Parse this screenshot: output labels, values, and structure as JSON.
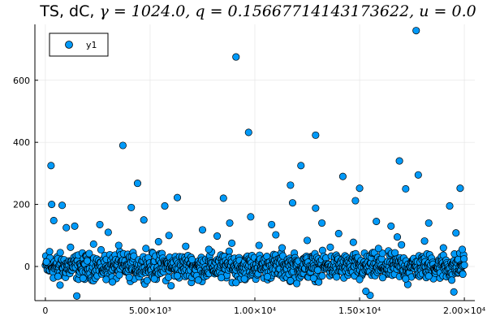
{
  "chart_data": {
    "type": "scatter",
    "title": "TS, dC, γ = 1024.0, q = 0.15667714143173622, u = 0.0",
    "title_parts": {
      "prefix": "TS, dC, ",
      "math": "γ = 1024.0, q = 0.15667714143173622, u = 0.0"
    },
    "xlabel": "",
    "ylabel": "",
    "xlim": [
      -500,
      20500
    ],
    "ylim": [
      -110,
      780
    ],
    "x_ticks": [
      {
        "value": 0,
        "label": "0"
      },
      {
        "value": 5000,
        "label": "5.00×10³"
      },
      {
        "value": 10000,
        "label": "1.00×10⁴"
      },
      {
        "value": 15000,
        "label": "1.50×10⁴"
      },
      {
        "value": 20000,
        "label": "2.00×10⁴"
      }
    ],
    "y_ticks": [
      {
        "value": 0,
        "label": "0"
      },
      {
        "value": 200,
        "label": "200"
      },
      {
        "value": 400,
        "label": "400"
      },
      {
        "value": 600,
        "label": "600"
      }
    ],
    "grid": true,
    "legend_position": "top-left",
    "series": [
      {
        "name": "y1",
        "color": "#009af9",
        "edge_color": "#000000",
        "points": [
          [
            270,
            325
          ],
          [
            3700,
            390
          ],
          [
            4400,
            268
          ],
          [
            9100,
            675
          ],
          [
            9700,
            432
          ],
          [
            12900,
            423
          ],
          [
            12200,
            325
          ],
          [
            17700,
            760
          ],
          [
            16900,
            340
          ],
          [
            17800,
            295
          ],
          [
            14200,
            290
          ],
          [
            11700,
            262
          ],
          [
            6300,
            222
          ],
          [
            8500,
            220
          ],
          [
            11800,
            205
          ],
          [
            14800,
            212
          ],
          [
            19800,
            252
          ],
          [
            300,
            200
          ],
          [
            800,
            197
          ],
          [
            15000,
            252
          ],
          [
            17200,
            250
          ],
          [
            4100,
            190
          ],
          [
            5700,
            195
          ],
          [
            9800,
            160
          ],
          [
            12900,
            188
          ],
          [
            19300,
            195
          ],
          [
            1000,
            125
          ],
          [
            1400,
            130
          ],
          [
            2600,
            135
          ],
          [
            4700,
            150
          ],
          [
            8800,
            140
          ],
          [
            10800,
            135
          ],
          [
            13200,
            140
          ],
          [
            15800,
            145
          ],
          [
            18300,
            140
          ],
          [
            400,
            148
          ],
          [
            7500,
            118
          ],
          [
            16500,
            130
          ],
          [
            1500,
            -95
          ],
          [
            15500,
            -93
          ],
          [
            15300,
            -80
          ],
          [
            19500,
            -82
          ],
          [
            6000,
            -62
          ],
          [
            700,
            -60
          ],
          [
            12000,
            -55
          ],
          [
            17300,
            -58
          ],
          [
            3200,
            -50
          ],
          [
            9100,
            -52
          ],
          [
            200,
            48
          ],
          [
            1200,
            62
          ],
          [
            2300,
            72
          ],
          [
            3500,
            68
          ],
          [
            4800,
            58
          ],
          [
            5400,
            80
          ],
          [
            6700,
            65
          ],
          [
            7800,
            55
          ],
          [
            8900,
            75
          ],
          [
            10200,
            68
          ],
          [
            11300,
            60
          ],
          [
            12500,
            84
          ],
          [
            13600,
            62
          ],
          [
            14700,
            78
          ],
          [
            15900,
            58
          ],
          [
            17000,
            70
          ],
          [
            18100,
            82
          ],
          [
            19000,
            60
          ],
          [
            19900,
            55
          ],
          [
            600,
            -32
          ],
          [
            1800,
            -38
          ],
          [
            2900,
            -42
          ],
          [
            4000,
            -35
          ],
          [
            5200,
            -40
          ],
          [
            6300,
            -30
          ],
          [
            7300,
            -44
          ],
          [
            8400,
            -36
          ],
          [
            9500,
            -40
          ],
          [
            10600,
            -33
          ],
          [
            11700,
            -46
          ],
          [
            12800,
            -38
          ],
          [
            13900,
            -34
          ],
          [
            15000,
            -42
          ],
          [
            16100,
            -36
          ],
          [
            17200,
            -40
          ],
          [
            18300,
            -31
          ],
          [
            19400,
            -44
          ],
          [
            50,
            15
          ],
          [
            3000,
            110
          ],
          [
            5900,
            100
          ],
          [
            8200,
            98
          ],
          [
            11000,
            102
          ],
          [
            14000,
            106
          ],
          [
            16800,
            95
          ],
          [
            19600,
            108
          ],
          [
            2000,
            18
          ],
          [
            7000,
            22
          ],
          [
            13000,
            -12
          ]
        ]
      }
    ],
    "band": {
      "x_start": 0,
      "x_end": 20000,
      "y_center": 0,
      "y_spread": 40
    }
  }
}
